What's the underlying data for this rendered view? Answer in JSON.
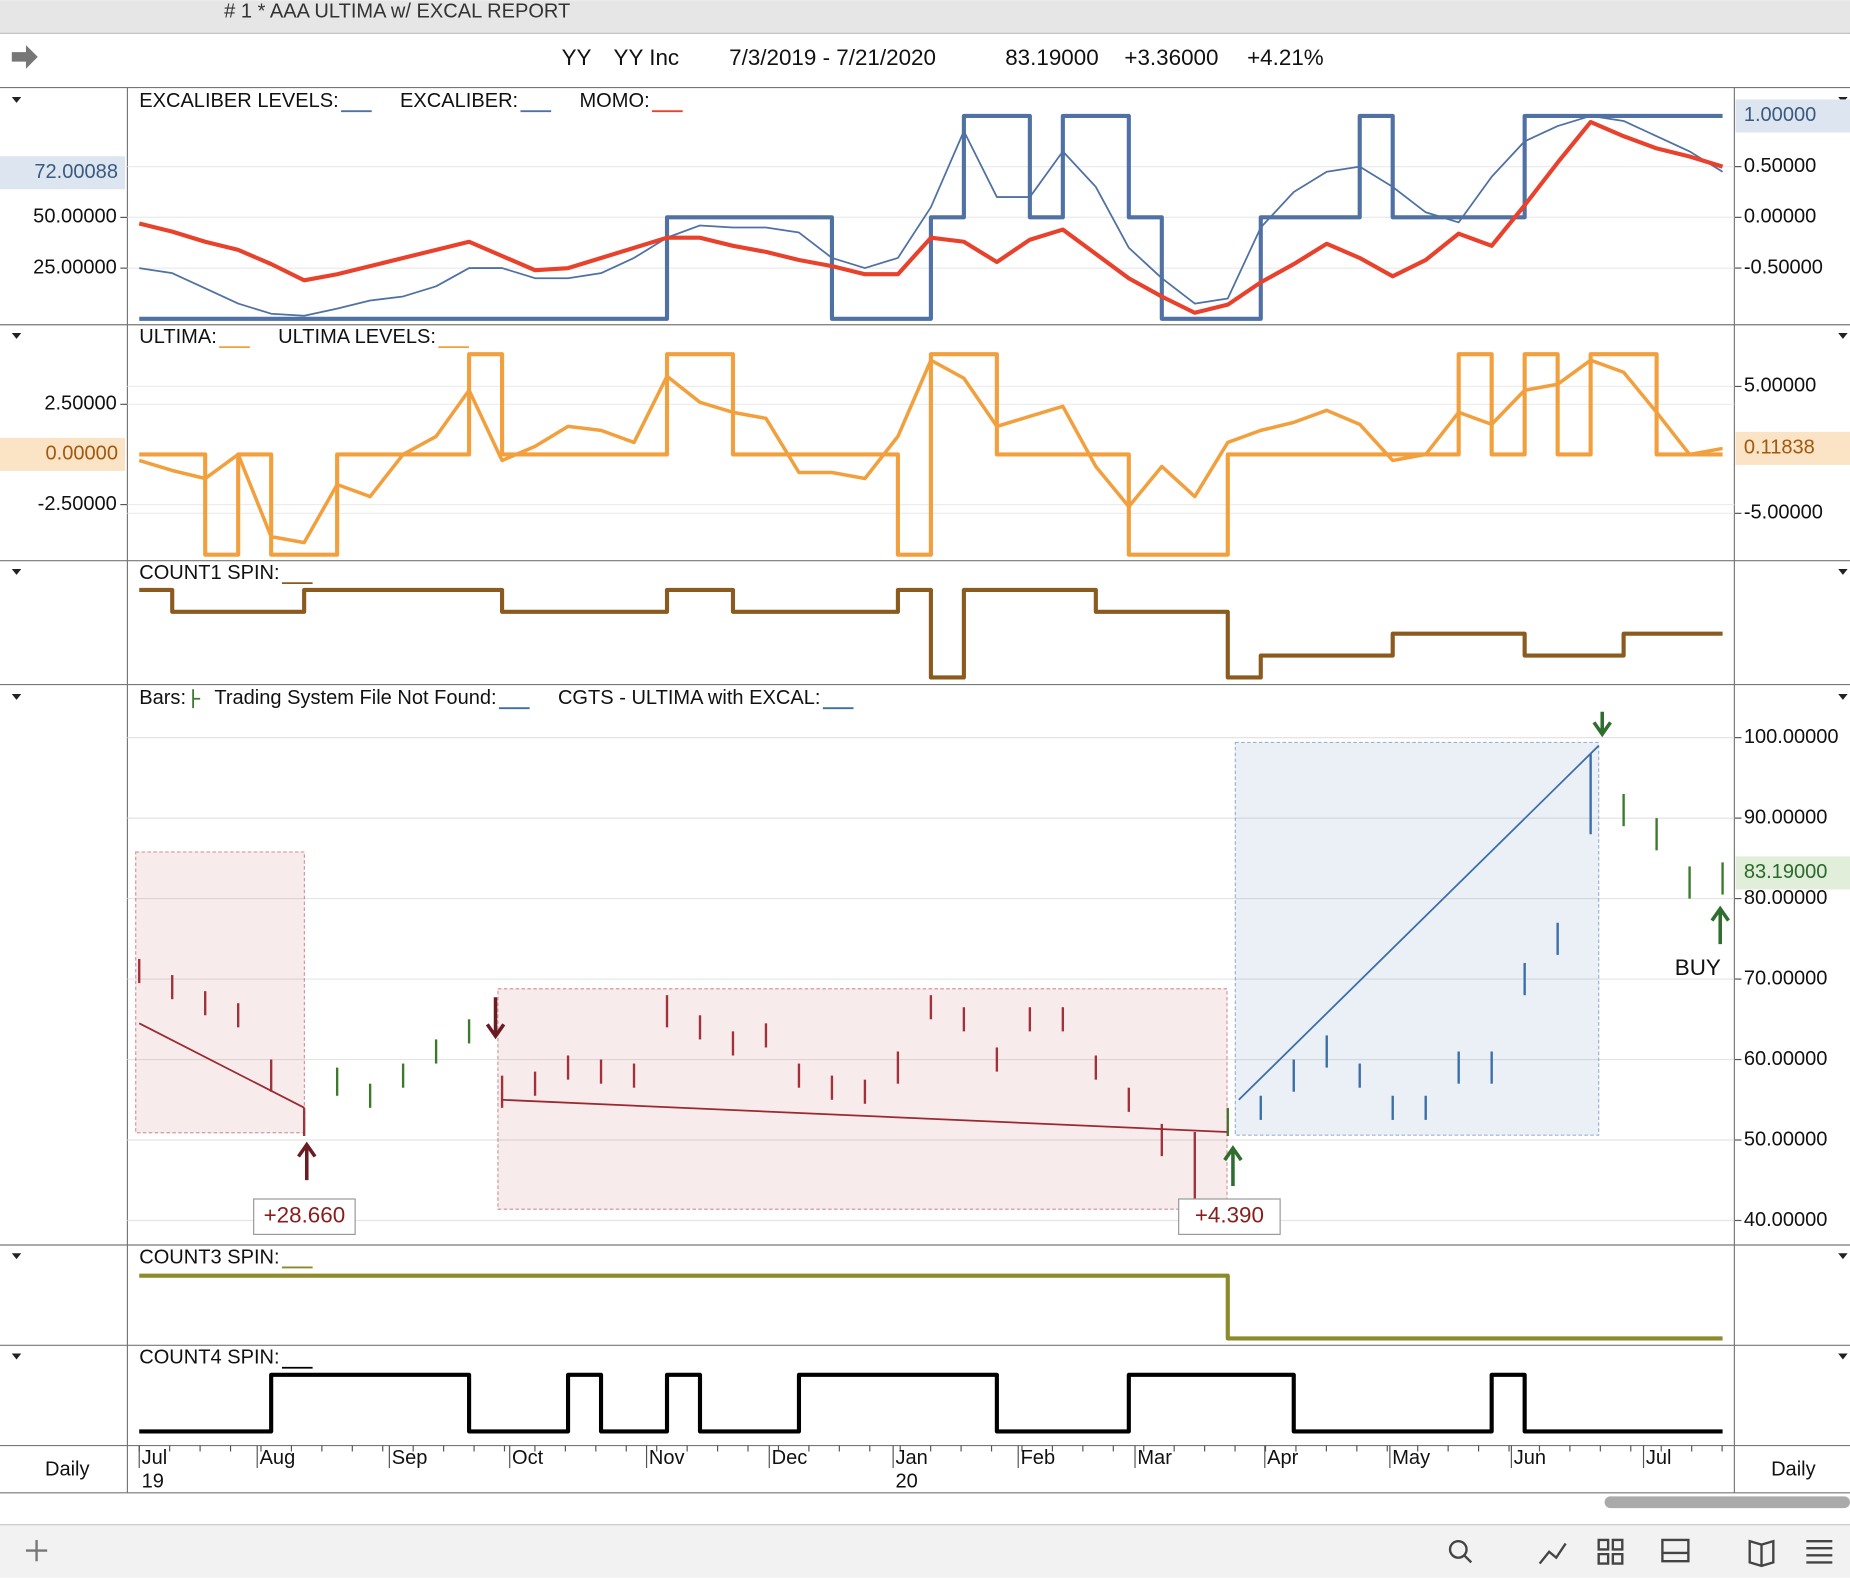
{
  "window": {
    "title": "# 1 * AAA ULTIMA w/ EXCAL REPORT"
  },
  "header": {
    "symbol": "YY",
    "name": "YY Inc",
    "range": "7/3/2019 - 7/21/2020",
    "last": "83.19000",
    "change": "+3.36000",
    "change_pct": "+4.21%"
  },
  "interval": "Daily",
  "time_axis": {
    "months": [
      "Jul",
      "Aug",
      "Sep",
      "Oct",
      "Nov",
      "Dec",
      "Jan",
      "Feb",
      "Mar",
      "Apr",
      "May",
      "Jun",
      "Jul"
    ],
    "years": [
      "19",
      "20"
    ]
  },
  "chart_data": [
    {
      "type": "line",
      "ylim": [
        -2.3,
        112.8
      ],
      "yticks": [
        {
          "value": 25,
          "label": "25.00000"
        },
        {
          "value": 50,
          "label": "50.00000"
        }
      ],
      "ymarker": {
        "value": 72.00088,
        "label": "72.00088"
      },
      "y2lim": [
        -1.047,
        1.256
      ],
      "y2ticks": [
        {
          "value": 0.5,
          "label": "0.50000"
        },
        {
          "value": 0,
          "label": "0.00000"
        },
        {
          "value": -0.5,
          "label": "-0.50000"
        }
      ],
      "y2marker": {
        "value": 1,
        "label": "1.00000"
      },
      "series": [
        {
          "name": "EXCALIBER LEVELS:",
          "color": "#4f71a3",
          "axis": "y2",
          "step": true,
          "width": 3.5,
          "values": [
            -1,
            -1,
            -1,
            -1,
            -1,
            -1,
            -1,
            -1,
            -1,
            -1,
            -1,
            -1,
            -1,
            -1,
            -1,
            -1,
            0,
            0,
            0,
            0,
            0,
            -1,
            -1,
            -1,
            0,
            1,
            1,
            0,
            1,
            1,
            0,
            -1,
            -1,
            -1,
            0,
            0,
            0,
            1,
            0,
            0,
            0,
            0,
            1,
            1,
            1,
            1,
            1,
            1,
            1
          ]
        },
        {
          "name": "EXCALIBER:",
          "color": "#4f71a3",
          "axis": "y2",
          "width": 1.5,
          "values": [
            -0.5,
            -0.55,
            -0.7,
            -0.85,
            -0.95,
            -0.97,
            -0.9,
            -0.82,
            -0.78,
            -0.68,
            -0.5,
            -0.5,
            -0.6,
            -0.6,
            -0.55,
            -0.4,
            -0.2,
            -0.08,
            -0.1,
            -0.1,
            -0.15,
            -0.4,
            -0.5,
            -0.4,
            0.1,
            0.85,
            0.2,
            0.2,
            0.65,
            0.3,
            -0.3,
            -0.6,
            -0.85,
            -0.8,
            -0.1,
            0.25,
            0.45,
            0.5,
            0.3,
            0.05,
            -0.05,
            0.4,
            0.75,
            0.9,
            1,
            0.95,
            0.8,
            0.65,
            0.45
          ]
        },
        {
          "name": "MOMO:",
          "color": "#e8412c",
          "width": 3.5,
          "values": [
            47,
            43,
            38,
            34,
            27,
            19,
            22,
            26,
            30,
            34,
            38,
            31,
            24,
            25,
            30,
            35,
            40,
            40,
            36,
            33,
            29,
            26,
            22,
            22,
            40,
            38,
            28,
            39,
            44,
            32,
            20,
            11,
            3,
            7,
            18,
            27,
            37,
            30,
            21,
            29,
            42,
            36,
            56,
            77,
            97,
            90,
            84,
            80,
            75
          ]
        }
      ]
    },
    {
      "type": "line",
      "ylim": [
        -5.24,
        6.41
      ],
      "yticks": [
        {
          "value": 2.5,
          "label": "2.50000"
        },
        {
          "value": -2.5,
          "label": "-2.50000"
        }
      ],
      "ymarker": {
        "value": 0,
        "label": "0.00000"
      },
      "y2lim": [
        -8.64,
        9.77
      ],
      "y2ticks": [
        {
          "value": 5,
          "label": "5.00000"
        },
        {
          "value": -5,
          "label": "-5.00000"
        }
      ],
      "y2marker": {
        "value": 0.11838,
        "label": "0.11838"
      },
      "series": [
        {
          "name": "ULTIMA:",
          "color": "#f2a03d",
          "width": 3,
          "values": [
            -0.3,
            -0.8,
            -1.2,
            0,
            -4.1,
            -4.4,
            -1.5,
            -2.1,
            0,
            0.9,
            3.2,
            -0.3,
            0.4,
            1.4,
            1.2,
            0.6,
            3.9,
            2.6,
            2.1,
            1.8,
            -0.9,
            -0.9,
            -1.2,
            0.9,
            4.7,
            3.8,
            1.4,
            1.9,
            2.4,
            -0.6,
            -2.6,
            -0.6,
            -2.1,
            0.6,
            1.2,
            1.6,
            2.2,
            1.5,
            -0.3,
            0,
            2.1,
            1.5,
            3.2,
            3.5,
            4.7,
            4.1,
            2.1,
            0,
            0.3
          ]
        },
        {
          "name": "ULTIMA LEVELS:",
          "color": "#f2a03d",
          "step": true,
          "width": 3.5,
          "values": [
            0,
            0,
            -5,
            0,
            -5,
            -5,
            0,
            0,
            0,
            0,
            5,
            0,
            0,
            0,
            0,
            0,
            5,
            5,
            0,
            0,
            0,
            0,
            0,
            -5,
            5,
            5,
            0,
            0,
            0,
            0,
            -5,
            -5,
            -5,
            0,
            0,
            0,
            0,
            0,
            0,
            0,
            5,
            0,
            5,
            0,
            5,
            5,
            0,
            0,
            0
          ]
        }
      ]
    },
    {
      "type": "step",
      "ylim": [
        -0.27,
        5.28
      ],
      "series": [
        {
          "name": "COUNT1 SPIN:",
          "color": "#8b5a1e",
          "step": true,
          "width": 3.5,
          "values": [
            4,
            3,
            3,
            3,
            3,
            4,
            4,
            4,
            4,
            4,
            4,
            3,
            3,
            3,
            3,
            3,
            4,
            4,
            3,
            3,
            3,
            3,
            3,
            4,
            0,
            4,
            4,
            4,
            4,
            3,
            3,
            3,
            3,
            0,
            1,
            1,
            1,
            1,
            2,
            2,
            2,
            2,
            1,
            1,
            1,
            2,
            2,
            2,
            2
          ]
        }
      ]
    },
    {
      "type": "ohlc",
      "y2lim": [
        37.1,
        106.3
      ],
      "y2ticks": [
        {
          "value": 100,
          "label": "100.00000"
        },
        {
          "value": 90,
          "label": "90.00000"
        },
        {
          "value": 80,
          "label": "80.00000"
        },
        {
          "value": 70,
          "label": "70.00000"
        },
        {
          "value": 60,
          "label": "60.00000"
        },
        {
          "value": 50,
          "label": "50.00000"
        },
        {
          "value": 40,
          "label": "40.00000"
        }
      ],
      "y2marker": {
        "value": 83.19,
        "label": "83.19000"
      },
      "signal": "BUY",
      "series": [
        {
          "name": "Bars:",
          "color": "#3a7a2a",
          "high": [
            72.5,
            70.5,
            68.5,
            67,
            60,
            54,
            59,
            57,
            59.5,
            62.5,
            65,
            58,
            58.5,
            60.5,
            60,
            59.5,
            68,
            65.5,
            63.5,
            64.5,
            59.5,
            58,
            57.5,
            61,
            68,
            66.5,
            61.5,
            66.5,
            66.5,
            60.5,
            56.5,
            52,
            51,
            54,
            55.5,
            60,
            63,
            59.5,
            55.5,
            55.5,
            61,
            61,
            72,
            77,
            98,
            93,
            90,
            84,
            84.5
          ],
          "low": [
            69.5,
            67.5,
            65.5,
            64,
            56,
            50.5,
            55.5,
            54,
            56.5,
            59.5,
            62,
            54,
            55.5,
            57.5,
            57,
            56.5,
            64,
            62.5,
            60.5,
            61.5,
            56.5,
            55,
            54.5,
            57,
            65,
            63.5,
            58.5,
            63.5,
            63.5,
            57.5,
            53.5,
            48,
            41,
            50.5,
            52.5,
            56,
            59,
            56.5,
            52.5,
            52.5,
            57,
            57,
            68,
            73,
            88,
            89,
            86,
            80,
            80.5
          ]
        },
        {
          "name": "Trading System File Not Found:",
          "color": "#3b6ea8"
        },
        {
          "name": "CGTS - ULTIMA with EXCAL:",
          "color": "#3b6ea8",
          "trades": [
            {
              "color": "#b23a44",
              "box": [
                85.8,
                50.9
              ],
              "line": [
                64.5,
                54
              ],
              "profit": {
                "value": 28.66,
                "label": "+28.660"
              }
            },
            {
              "color": "#b23a44",
              "box": [
                68.8,
                41.4
              ],
              "line": [
                55,
                51
              ],
              "profit": {
                "value": 4.39,
                "label": "+4.390"
              }
            },
            {
              "color": "#3b6ea8",
              "box": [
                99.4,
                50.6
              ],
              "line": [
                55,
                99
              ]
            }
          ]
        }
      ]
    },
    {
      "type": "step",
      "ylim": [
        -0.09,
        1.47
      ],
      "series": [
        {
          "name": "COUNT3 SPIN:",
          "color": "#8c8a2a",
          "step": true,
          "width": 3.5,
          "values": [
            1,
            1,
            1,
            1,
            1,
            1,
            1,
            1,
            1,
            1,
            1,
            1,
            1,
            1,
            1,
            1,
            1,
            1,
            1,
            1,
            1,
            1,
            1,
            1,
            1,
            1,
            1,
            1,
            1,
            1,
            1,
            1,
            1,
            0,
            0,
            0,
            0,
            0,
            0,
            0,
            0,
            0,
            0,
            0,
            0,
            0,
            0,
            0,
            0
          ]
        }
      ]
    },
    {
      "type": "step",
      "ylim": [
        -0.25,
        1.5
      ],
      "series": [
        {
          "name": "COUNT4 SPIN:",
          "color": "#000000",
          "step": true,
          "width": 3.5,
          "values": [
            0,
            0,
            0,
            0,
            1,
            1,
            1,
            1,
            1,
            1,
            0,
            0,
            0,
            1,
            0,
            0,
            1,
            0,
            0,
            0,
            1,
            1,
            1,
            1,
            1,
            1,
            0,
            0,
            0,
            0,
            1,
            1,
            1,
            1,
            1,
            0,
            0,
            0,
            0,
            0,
            0,
            1,
            0,
            0,
            0,
            0,
            0,
            0,
            0
          ]
        }
      ]
    }
  ]
}
